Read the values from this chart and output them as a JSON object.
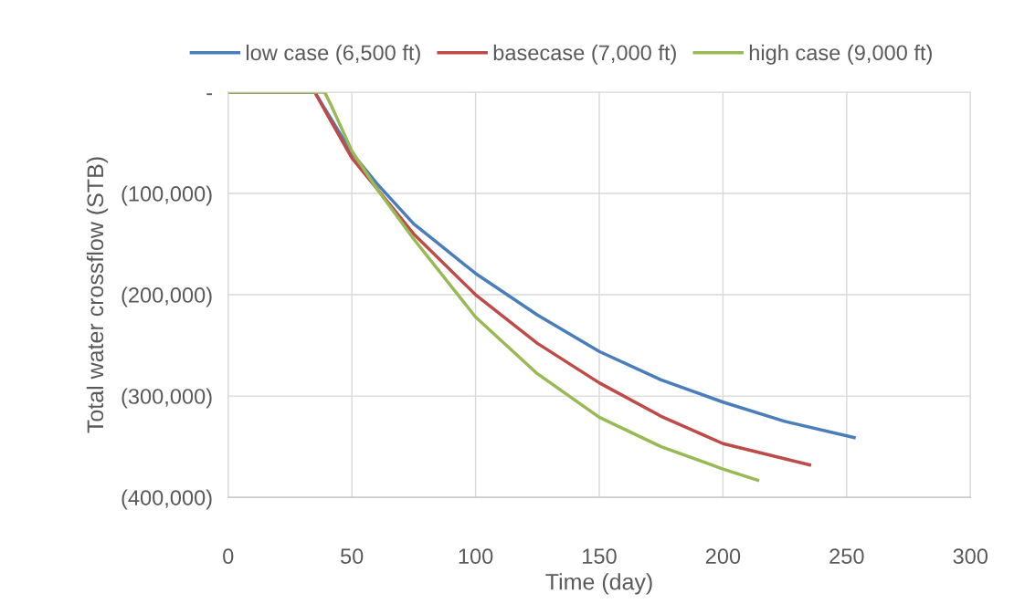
{
  "chart_data": {
    "type": "line",
    "xlabel": "Time (day)",
    "ylabel": "Total water crossflow (STB)",
    "xlim": [
      0,
      300
    ],
    "xticks": [
      0,
      50,
      100,
      150,
      200,
      250,
      300
    ],
    "ylim": [
      -400000,
      0
    ],
    "yticks": [
      {
        "value": -400000,
        "label": "(400,000)"
      },
      {
        "value": -300000,
        "label": "(300,000)"
      },
      {
        "value": -200000,
        "label": "(200,000)"
      },
      {
        "value": -100000,
        "label": "(100,000)"
      },
      {
        "value": 0,
        "label": "-"
      }
    ],
    "grid": true,
    "legend": "top",
    "marker": "none",
    "line_style": "solid",
    "series": [
      {
        "name": "low case (6,500 ft)",
        "color": "#4a7ebb",
        "x": [
          0,
          35,
          40,
          50,
          60,
          75,
          100,
          125,
          150,
          175,
          200,
          225,
          253
        ],
        "values": [
          0,
          0,
          -20000,
          -60000,
          -90000,
          -130000,
          -179000,
          -220000,
          -256000,
          -284000,
          -306000,
          -325000,
          -341000
        ]
      },
      {
        "name": "basecase (7,000 ft)",
        "color": "#be4b48",
        "x": [
          0,
          35,
          40,
          50,
          60,
          75,
          100,
          125,
          150,
          175,
          200,
          235
        ],
        "values": [
          0,
          0,
          -22000,
          -65000,
          -95000,
          -140000,
          -200000,
          -248000,
          -287000,
          -320000,
          -347000,
          -368000
        ]
      },
      {
        "name": "high case (9,000 ft)",
        "color": "#98b954",
        "x": [
          0,
          39,
          42,
          50,
          60,
          75,
          100,
          125,
          150,
          175,
          200,
          214
        ],
        "values": [
          0,
          0,
          -15000,
          -58000,
          -95000,
          -145000,
          -222000,
          -278000,
          -321000,
          -350000,
          -372000,
          -383000
        ]
      }
    ]
  }
}
